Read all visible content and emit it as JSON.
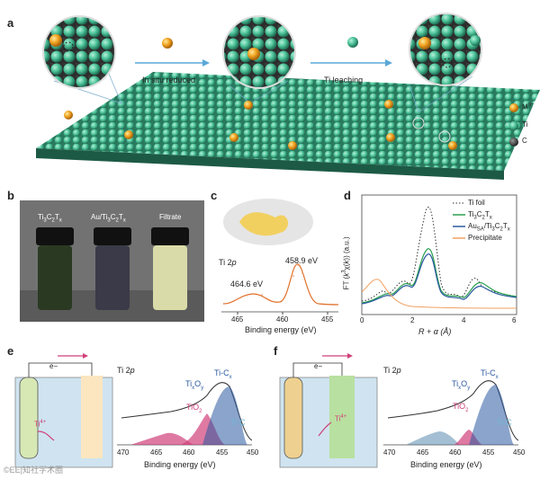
{
  "panel_a": {
    "letter": "a",
    "step1": "In situ reduced",
    "step2": "Ti leaching",
    "legend": [
      {
        "label": "Mn+",
        "color": "#f0a52a",
        "icon": "gold-sphere-icon"
      },
      {
        "label": "Ti",
        "color": "#5fd0a8",
        "icon": "teal-sphere-icon"
      },
      {
        "label": "C",
        "color": "#444444",
        "icon": "dark-sphere-icon"
      }
    ]
  },
  "panel_b": {
    "letter": "b",
    "vials": [
      {
        "label": "Ti3C2Tx",
        "liquid": "#2a3a22"
      },
      {
        "label": "Au/Ti3C2Tx",
        "liquid": "#3a3a48"
      },
      {
        "label": "Filtrate",
        "liquid": "#d9dca8"
      }
    ]
  },
  "panel_c": {
    "letter": "c",
    "spectrum_label": "Ti 2p",
    "peak1": "464.6 eV",
    "peak2": "458.9 eV",
    "xlabel": "Binding energy (eV)",
    "xticks": [
      "465",
      "460",
      "455"
    ]
  },
  "panel_d": {
    "letter": "d",
    "ylabel": "FT (k3χ(k)) (a.u.)",
    "xlabel": "R + α (Å)",
    "xticks": [
      "0",
      "2",
      "4",
      "6"
    ],
    "legend": [
      "Ti foil",
      "Ti3C2Tx",
      "AuSA/Ti3C2Tx",
      "Precipitate"
    ]
  },
  "panel_e": {
    "letter": "e",
    "electron": "e−",
    "ion": "Ti4+",
    "spectrum_label": "Ti 2p",
    "labels": [
      "Ti-Cx",
      "TixOy",
      "TiO2",
      "Ti-C"
    ],
    "xlabel": "Binding energy (eV)",
    "xticks": [
      "470",
      "465",
      "460",
      "455",
      "450"
    ]
  },
  "panel_f": {
    "letter": "f",
    "electron": "e−",
    "ion": "Ti4+",
    "spectrum_label": "Ti 2p",
    "labels": [
      "Ti-Cx",
      "TixOy",
      "TiO2",
      "Ti-C"
    ],
    "xlabel": "Binding energy (eV)",
    "xticks": [
      "470",
      "465",
      "460",
      "455",
      "450"
    ]
  },
  "watermark": "©EE|知社学术圈",
  "colors": {
    "teal": "#3ea887",
    "gold": "#f0a52a",
    "arrow": "#5aa8d8",
    "pink": "#d0407a",
    "blue": "#2b5aa0"
  }
}
